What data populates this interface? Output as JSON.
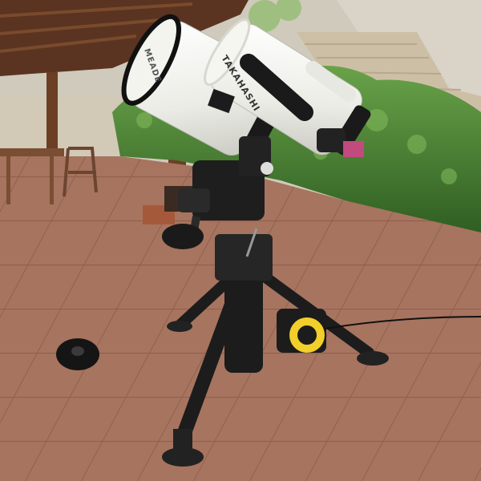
{
  "photo": {
    "brand_tube_left": "MEADE",
    "brand_tube_right": "TAKAHASHI",
    "colors": {
      "tile": "#a7745f",
      "tile_dark": "#8d5f4c",
      "foliage": "#3f7a2e",
      "foliage_light": "#6aa34a",
      "pergola": "#6b3f24",
      "tube_white": "#ecece6",
      "mount_black": "#1c1c1c",
      "stone": "#d9d4c7",
      "cable_reel_yellow": "#f2cf2a"
    }
  }
}
